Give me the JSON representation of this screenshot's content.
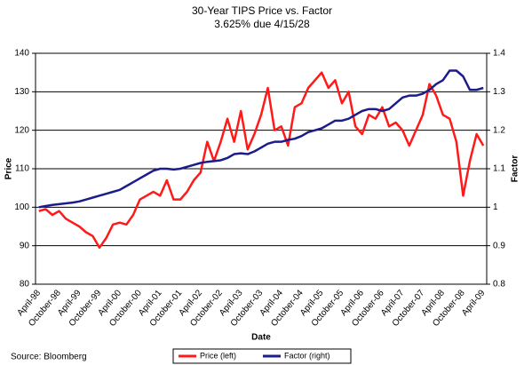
{
  "chart_data": {
    "type": "line",
    "title": "30-Year TIPS Price vs. Factor",
    "subtitle": "3.625% due 4/15/28",
    "x_label": "Date",
    "y_label": "Price",
    "y2_label": "Factor",
    "source": "Source: Bloomberg",
    "categories": [
      "April-98",
      null,
      null,
      "October-98",
      null,
      null,
      "April-99",
      null,
      null,
      "October-99",
      null,
      null,
      "April-00",
      null,
      null,
      "October-00",
      null,
      null,
      "April-01",
      null,
      null,
      "October-01",
      null,
      null,
      "April-02",
      null,
      null,
      "October-02",
      null,
      null,
      "April-03",
      null,
      null,
      "October-03",
      null,
      null,
      "April-04",
      null,
      null,
      "October-04",
      null,
      null,
      "April-05",
      null,
      null,
      "October-05",
      null,
      null,
      "April-06",
      null,
      null,
      "October-06",
      null,
      null,
      "April-07",
      null,
      null,
      "October-07",
      null,
      null,
      "April-08",
      null,
      null,
      "October-08",
      null,
      null,
      "April-09"
    ],
    "series": [
      {
        "name": "Price (left)",
        "color": "#ff1a1a",
        "values": [
          99,
          99.5,
          98,
          99,
          97,
          96,
          95,
          93.5,
          92.5,
          89.5,
          92,
          95.5,
          96,
          95.5,
          98,
          102,
          103,
          104,
          103,
          107,
          102,
          102,
          104,
          107,
          109,
          117,
          112,
          117,
          123,
          117,
          125,
          115,
          119,
          124,
          131,
          120,
          121,
          116,
          126,
          127,
          131,
          133,
          135,
          131,
          133,
          127,
          130,
          121,
          119,
          124,
          123,
          126,
          121,
          122,
          120,
          116,
          120,
          124,
          132,
          129,
          124,
          123,
          117,
          103,
          112,
          119,
          116
        ]
      },
      {
        "name": "Factor (right)",
        "color": "#1c1c8a",
        "axis": "y2",
        "values": [
          1.0,
          1.003,
          1.006,
          1.008,
          1.01,
          1.012,
          1.015,
          1.02,
          1.025,
          1.03,
          1.035,
          1.04,
          1.045,
          1.055,
          1.065,
          1.075,
          1.085,
          1.095,
          1.1,
          1.1,
          1.098,
          1.1,
          1.105,
          1.11,
          1.115,
          1.118,
          1.12,
          1.122,
          1.128,
          1.138,
          1.14,
          1.138,
          1.145,
          1.155,
          1.165,
          1.17,
          1.17,
          1.175,
          1.178,
          1.185,
          1.195,
          1.2,
          1.205,
          1.215,
          1.225,
          1.225,
          1.23,
          1.24,
          1.25,
          1.255,
          1.255,
          1.25,
          1.255,
          1.27,
          1.285,
          1.29,
          1.29,
          1.295,
          1.305,
          1.32,
          1.33,
          1.355,
          1.355,
          1.34,
          1.305,
          1.305,
          1.31
        ]
      }
    ],
    "ylim": [
      80,
      140
    ],
    "yticks": [
      80,
      90,
      100,
      110,
      120,
      130,
      140
    ],
    "y2lim": [
      0.8,
      1.4
    ],
    "y2ticks": [
      0.8,
      0.9,
      1,
      1.1,
      1.2,
      1.3,
      1.4
    ],
    "grid": true,
    "legend": "bottom"
  }
}
